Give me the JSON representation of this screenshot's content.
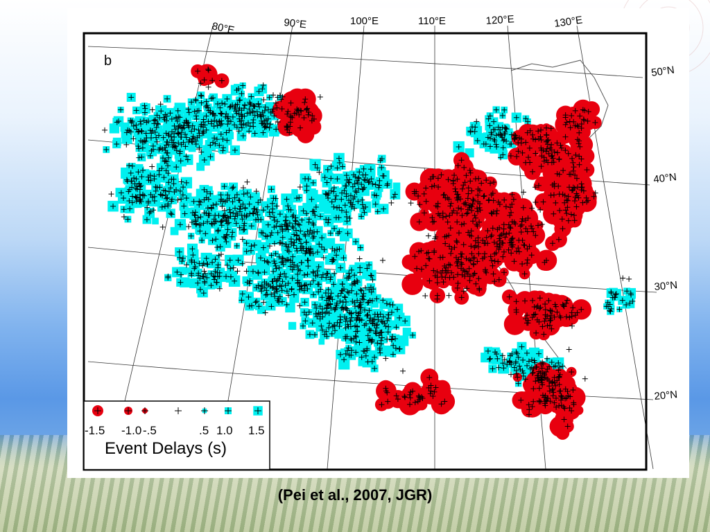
{
  "slide": {
    "caption": "(Pei et al., 2007, JGR)"
  },
  "figure": {
    "panel_label": "b",
    "longitude_labels": [
      "80°E",
      "90°E",
      "100°E",
      "110°E",
      "120°E",
      "130°E"
    ],
    "latitude_labels": [
      "50°N",
      "40°N",
      "30°N",
      "20°N"
    ],
    "colors": {
      "negative": "#e8000f",
      "positive": "#00f0f0",
      "cross": "#000000",
      "frame": "#000000"
    },
    "legend": {
      "title": "Event Delays (s)",
      "scale_labels": [
        "-1.5",
        "-1.0",
        "-.5",
        ".5",
        "1.0",
        "1.5"
      ],
      "symbol_values": [
        -1.5,
        -1.0,
        -0.5,
        0,
        0.5,
        1.0,
        1.5
      ]
    }
  },
  "chart_data": {
    "type": "scatter",
    "title": "",
    "xlabel": "",
    "ylabel": "",
    "xlim": [
      73,
      135
    ],
    "ylim": [
      17,
      53
    ],
    "legend_title": "Event Delays (s)",
    "symbol_key": {
      "red_circle": "negative delay (early), size ∝ |delay|",
      "cyan_square": "positive delay (late), size ∝ delay",
      "cross": "near zero delay"
    }
  }
}
